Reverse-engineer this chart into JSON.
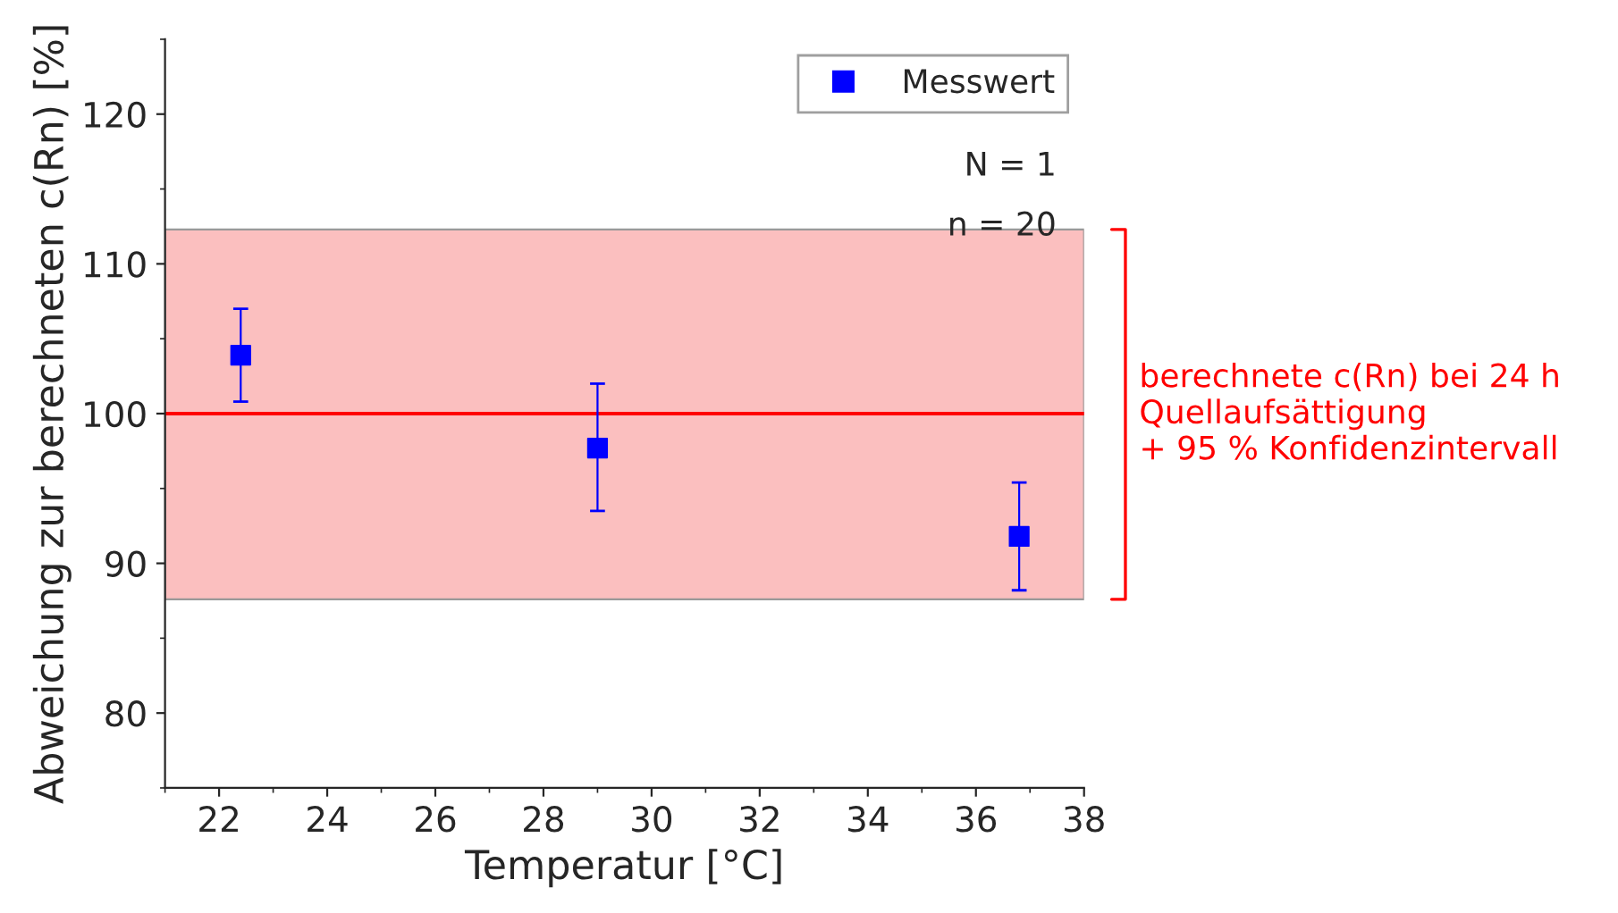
{
  "chart_data": {
    "type": "scatter",
    "xlabel": "Temperatur [°C]",
    "ylabel": "Abweichung zur berechneten c(Rn) [%]",
    "x": [
      22.4,
      29.0,
      36.8
    ],
    "series": [
      {
        "name": "Messwert",
        "color": "#0000ff",
        "values": [
          103.9,
          97.7,
          91.8
        ],
        "errors": [
          [
            100.8,
            107.0
          ],
          [
            93.5,
            102.0
          ],
          [
            88.2,
            95.4
          ]
        ]
      }
    ],
    "xlim": [
      21,
      38
    ],
    "xticks": [
      22,
      24,
      26,
      28,
      30,
      32,
      34,
      36,
      38
    ],
    "ylim": [
      75,
      125
    ],
    "yticks": [
      80,
      90,
      100,
      110,
      120
    ],
    "ref_lines": [
      {
        "axis": "y",
        "value": 100,
        "color": "#ff0000",
        "line_style": "solid"
      }
    ],
    "bands": [
      {
        "axis": "y",
        "from": 87.6,
        "to": 112.3,
        "color": "#fbbfbf",
        "label": "berechnete c(Rn) bei 24 h\nQuellaufsättigung\n+ 95 % Konfidenzintervall"
      }
    ],
    "annotations": [
      "N = 1",
      "n = 20"
    ],
    "legend": "top right",
    "marker": "square",
    "grid": false
  }
}
